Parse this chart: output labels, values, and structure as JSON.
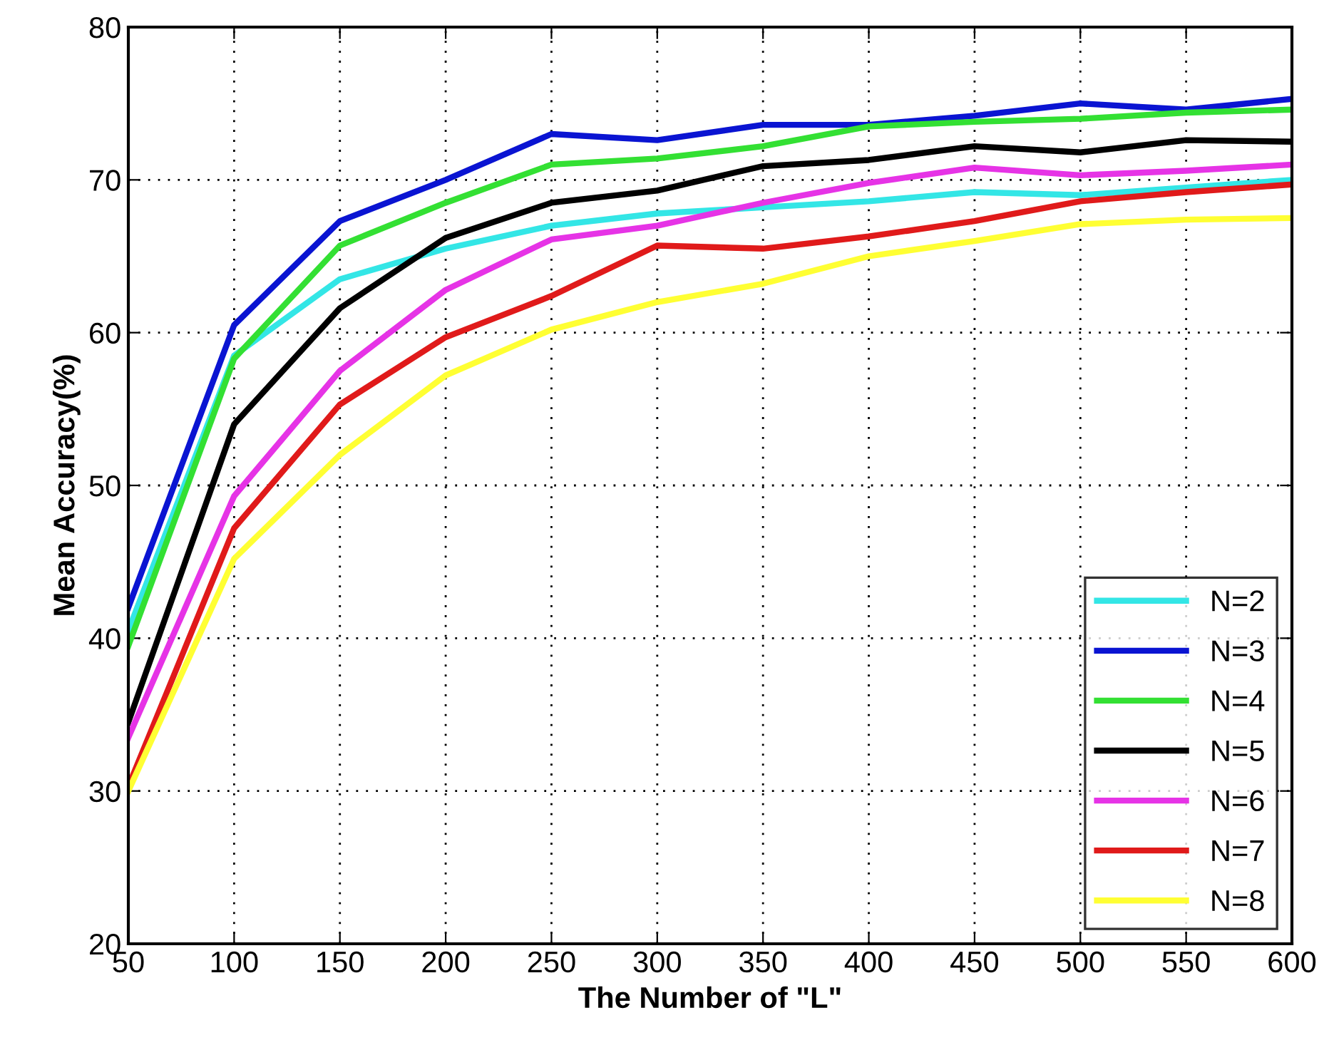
{
  "chart_data": {
    "type": "line",
    "xlabel": "The Number of \"L\"",
    "ylabel": "Mean Accuracy(%)",
    "x": [
      50,
      100,
      150,
      200,
      250,
      300,
      350,
      400,
      450,
      500,
      550,
      600
    ],
    "xlim": [
      50,
      600
    ],
    "xticks": [
      50,
      100,
      150,
      200,
      250,
      300,
      350,
      400,
      450,
      500,
      550,
      600
    ],
    "ylim": [
      20,
      80
    ],
    "yticks": [
      20,
      30,
      40,
      50,
      60,
      70,
      80
    ],
    "grid": true,
    "legend": "bottom right",
    "marker": "none",
    "line_style": "solid",
    "series": [
      {
        "name": "N=2",
        "color": "#33e6e6",
        "values": [
          40.5,
          58.5,
          63.5,
          65.5,
          67,
          67.8,
          68.2,
          68.6,
          69.2,
          69,
          69.5,
          70
        ]
      },
      {
        "name": "N=3",
        "color": "#0a14d2",
        "values": [
          42,
          60.5,
          67.3,
          70,
          73,
          72.6,
          73.6,
          73.6,
          74.2,
          75,
          74.6,
          75.3
        ]
      },
      {
        "name": "N=4",
        "color": "#33e033",
        "values": [
          39.5,
          58.3,
          65.7,
          68.5,
          71,
          71.4,
          72.2,
          73.5,
          73.8,
          74,
          74.4,
          74.6
        ]
      },
      {
        "name": "N=5",
        "color": "#000000",
        "values": [
          34.5,
          54,
          61.6,
          66.2,
          68.5,
          69.3,
          70.9,
          71.3,
          72.2,
          71.8,
          72.6,
          72.5
        ]
      },
      {
        "name": "N=6",
        "color": "#e633e6",
        "values": [
          33.5,
          49.3,
          57.5,
          62.8,
          66.1,
          67,
          68.5,
          69.8,
          70.8,
          70.3,
          70.6,
          71
        ]
      },
      {
        "name": "N=7",
        "color": "#e01a1a",
        "values": [
          30.3,
          47.2,
          55.3,
          59.7,
          62.4,
          65.7,
          65.5,
          66.3,
          67.3,
          68.6,
          69.2,
          69.7
        ]
      },
      {
        "name": "N=8",
        "color": "#ffff33",
        "values": [
          30,
          45.2,
          52,
          57.2,
          60.2,
          62,
          63.2,
          65,
          66,
          67.1,
          67.4,
          67.5
        ]
      }
    ]
  }
}
